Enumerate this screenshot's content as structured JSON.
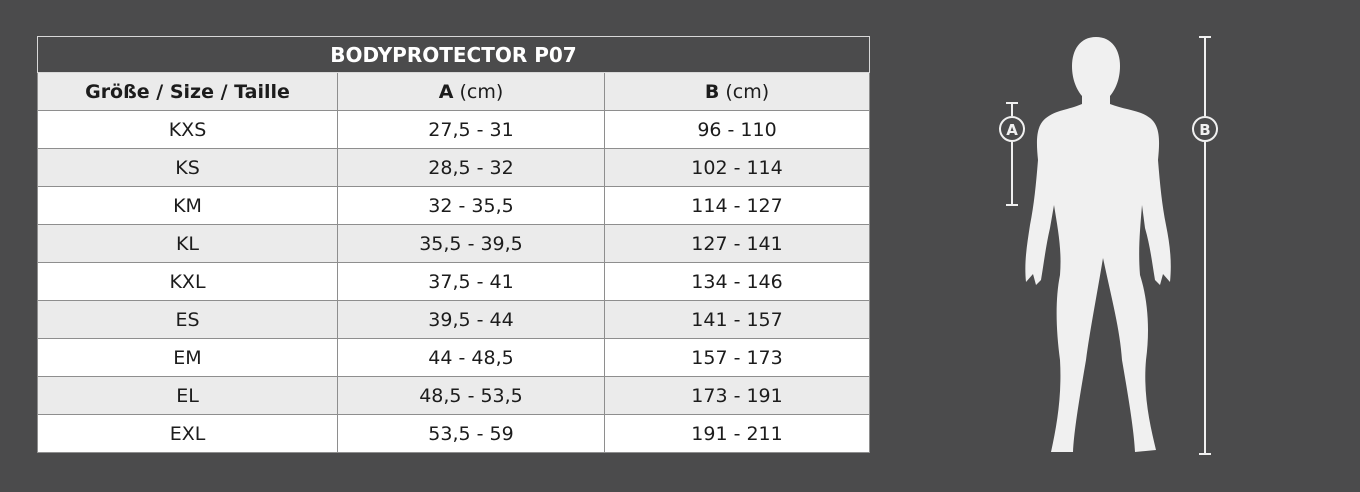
{
  "table": {
    "title": "BODYPROTECTOR P07",
    "headers": {
      "size": "Größe / Size / Taille",
      "a_letter": "A",
      "a_unit": "(cm)",
      "b_letter": "B",
      "b_unit": "(cm)"
    },
    "rows": [
      {
        "size": "KXS",
        "a": "27,5 - 31",
        "b": "96 - 110"
      },
      {
        "size": "KS",
        "a": "28,5 - 32",
        "b": "102 - 114"
      },
      {
        "size": "KM",
        "a": "32 - 35,5",
        "b": "114 - 127"
      },
      {
        "size": "KL",
        "a": "35,5 - 39,5",
        "b": "127 - 141"
      },
      {
        "size": "KXL",
        "a": "37,5 - 41",
        "b": "134 - 146"
      },
      {
        "size": "ES",
        "a": "39,5 - 44",
        "b": "141 - 157"
      },
      {
        "size": "EM",
        "a": "44 - 48,5",
        "b": "157 - 173"
      },
      {
        "size": "EL",
        "a": "48,5 - 53,5",
        "b": "173 - 191"
      },
      {
        "size": "EXL",
        "a": "53,5 - 59",
        "b": "191 - 211"
      }
    ]
  },
  "figure": {
    "marker_a": "A",
    "marker_b": "B"
  },
  "colors": {
    "background": "#4b4b4c",
    "row_alt": "#ebebeb",
    "silhouette": "#f0f0f0"
  }
}
